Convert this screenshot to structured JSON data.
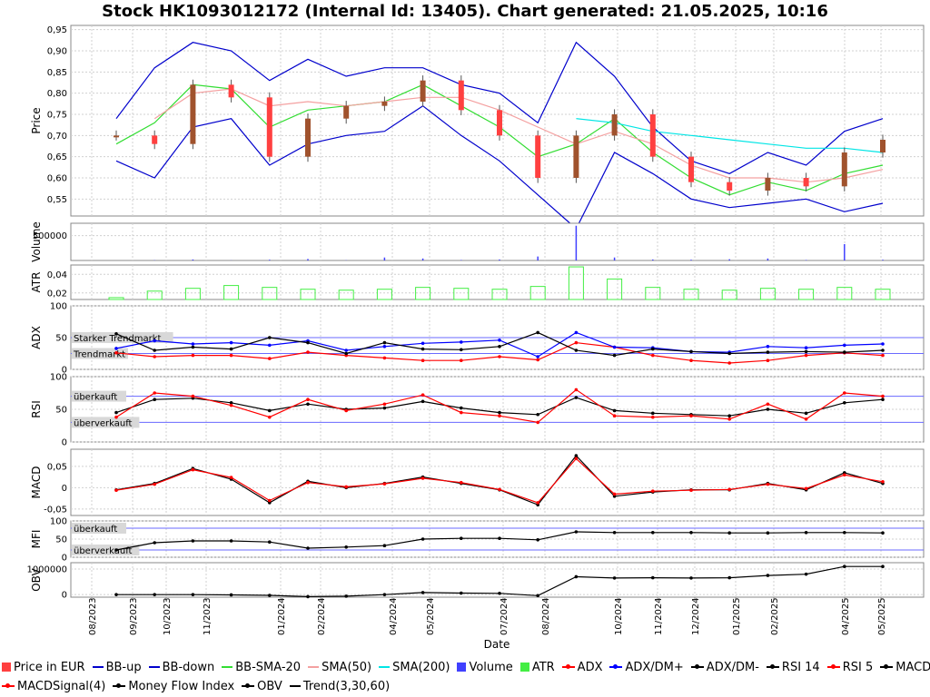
{
  "title": "Stock HK1093012172 (Internal Id: 13405). Chart generated: 21.05.2025, 10:16",
  "x_axis": {
    "label": "Date",
    "ticks": [
      "08/2023",
      "09/2023",
      "10/2023",
      "11/2023",
      "01/2024",
      "02/2024",
      "04/2024",
      "05/2024",
      "07/2024",
      "08/2024",
      "10/2024",
      "11/2024",
      "12/2024",
      "01/2025",
      "02/2025",
      "04/2025",
      "05/2025"
    ]
  },
  "panels": {
    "price": {
      "label": "Price",
      "ticks": [
        "0,55",
        "0,60",
        "0,65",
        "0,70",
        "0,75",
        "0,80",
        "0,85",
        "0,90",
        "0,95"
      ]
    },
    "volume": {
      "label": "Volume",
      "ticks": [
        "500000"
      ]
    },
    "atr": {
      "label": "ATR",
      "ticks": [
        "0,02",
        "0,04"
      ]
    },
    "adx": {
      "label": "ADX",
      "ticks": [
        "0",
        "50",
        "100"
      ],
      "band_strong": "Starker Trendmarkt",
      "band_trend": "Trendmarkt"
    },
    "rsi": {
      "label": "RSI",
      "ticks": [
        "0",
        "50",
        "100"
      ],
      "band_over": "überkauft",
      "band_under": "überverkauft"
    },
    "macd": {
      "label": "MACD",
      "ticks": [
        "-0,05",
        "0",
        "0,05"
      ]
    },
    "mfi": {
      "label": "MFI",
      "ticks": [
        "0",
        "50",
        "100"
      ],
      "band_over": "überkauft",
      "band_under": "überverkauft"
    },
    "obv": {
      "label": "OBV",
      "ticks": [
        "0",
        "1000000"
      ]
    }
  },
  "colors": {
    "candle_up": "#a0522d",
    "candle_down": "#ff4040",
    "bb": "#0000cc",
    "bb_sma": "#33dd33",
    "sma50": "#f4a0a0",
    "sma200": "#00e5e5",
    "volume": "#4040ff",
    "atr": "#44ee44",
    "adx": "#ff0000",
    "dm_plus": "#0000ff",
    "dm_minus": "#000000",
    "rsi14": "#000000",
    "rsi5": "#ff0000",
    "macd": "#000000",
    "macd_signal": "#ff0000",
    "mfi": "#000000",
    "obv": "#000000",
    "band_line": "#6a6aff"
  },
  "legend": {
    "row1": [
      {
        "label": "Price in EUR",
        "kind": "box",
        "color": "#ff4040"
      },
      {
        "label": "BB-up",
        "kind": "line",
        "color": "#0000cc"
      },
      {
        "label": "BB-down",
        "kind": "line",
        "color": "#0000cc"
      },
      {
        "label": "BB-SMA-20",
        "kind": "line",
        "color": "#33dd33"
      },
      {
        "label": "SMA(50)",
        "kind": "line",
        "color": "#f4a0a0"
      },
      {
        "label": "SMA(200)",
        "kind": "line",
        "color": "#00e5e5"
      },
      {
        "label": "Volume",
        "kind": "box",
        "color": "#4040ff"
      },
      {
        "label": "ATR",
        "kind": "box",
        "color": "#44ee44"
      },
      {
        "label": "ADX",
        "kind": "mark",
        "color": "#ff0000"
      },
      {
        "label": "ADX/DM+",
        "kind": "mark",
        "color": "#0000ff"
      },
      {
        "label": "ADX/DM-",
        "kind": "mark",
        "color": "#000000"
      },
      {
        "label": "RSI 14",
        "kind": "mark",
        "color": "#000000"
      },
      {
        "label": "RSI 5",
        "kind": "mark",
        "color": "#ff0000"
      },
      {
        "label": "MACD(5,13)",
        "kind": "mark",
        "color": "#000000"
      }
    ],
    "row2": [
      {
        "label": "MACDSignal(4)",
        "kind": "mark",
        "color": "#ff0000"
      },
      {
        "label": "Money Flow Index",
        "kind": "mark",
        "color": "#000000"
      },
      {
        "label": "OBV",
        "kind": "mark",
        "color": "#000000"
      },
      {
        "label": "Trend(3,30,60)",
        "kind": "line",
        "color": "#000000"
      }
    ]
  },
  "chart_data": {
    "type": "line",
    "title": "Stock HK1093012172 (Internal Id: 13405). Chart generated: 21.05.2025, 10:16",
    "xlabel": "Date",
    "x": [
      "09/2023",
      "10/2023",
      "11/2023",
      "12/2023",
      "01/2024",
      "02/2024",
      "03/2024",
      "04/2024",
      "05/2024",
      "06/2024",
      "07/2024",
      "08/2024",
      "09/2024",
      "10/2024",
      "11/2024",
      "12/2024",
      "01/2025",
      "02/2025",
      "03/2025",
      "04/2025",
      "05/2025"
    ],
    "price": {
      "ylabel": "Price",
      "ylim": [
        0.51,
        0.96
      ],
      "series": [
        {
          "name": "Price in EUR",
          "values": [
            0.7,
            0.68,
            0.82,
            0.79,
            0.65,
            0.74,
            0.77,
            0.78,
            0.83,
            0.76,
            0.7,
            0.6,
            0.7,
            0.75,
            0.65,
            0.59,
            0.57,
            0.6,
            0.58,
            0.66,
            0.69
          ]
        },
        {
          "name": "BB-up",
          "values": [
            0.74,
            0.86,
            0.92,
            0.9,
            0.83,
            0.88,
            0.84,
            0.86,
            0.86,
            0.82,
            0.8,
            0.73,
            0.92,
            0.84,
            0.72,
            0.64,
            0.61,
            0.66,
            0.63,
            0.71,
            0.74
          ]
        },
        {
          "name": "BB-down",
          "values": [
            0.64,
            0.6,
            0.72,
            0.74,
            0.63,
            0.68,
            0.7,
            0.71,
            0.77,
            0.7,
            0.64,
            0.56,
            0.48,
            0.66,
            0.61,
            0.55,
            0.53,
            0.54,
            0.55,
            0.52,
            0.54
          ]
        },
        {
          "name": "BB-SMA-20",
          "values": [
            0.68,
            0.73,
            0.82,
            0.81,
            0.72,
            0.76,
            0.77,
            0.78,
            0.82,
            0.77,
            0.72,
            0.65,
            0.68,
            0.74,
            0.66,
            0.6,
            0.56,
            0.59,
            0.57,
            0.61,
            0.63
          ]
        },
        {
          "name": "SMA(50)",
          "values": [
            null,
            0.74,
            0.8,
            0.81,
            0.77,
            0.78,
            0.77,
            0.78,
            0.79,
            0.79,
            0.76,
            0.72,
            0.68,
            0.71,
            0.68,
            0.63,
            0.6,
            0.6,
            0.59,
            0.6,
            0.62
          ]
        },
        {
          "name": "SMA(200)",
          "values": [
            null,
            null,
            null,
            null,
            null,
            null,
            null,
            null,
            null,
            null,
            null,
            null,
            0.74,
            0.73,
            0.71,
            0.7,
            0.69,
            0.68,
            0.67,
            0.67,
            0.66
          ]
        }
      ]
    },
    "volume": {
      "ylabel": "Volume",
      "values": [
        0,
        5000,
        20000,
        3000,
        15000,
        30000,
        5000,
        60000,
        40000,
        10000,
        20000,
        80000,
        700000,
        60000,
        20000,
        15000,
        25000,
        40000,
        10000,
        330000,
        15000
      ]
    },
    "atr": {
      "ylabel": "ATR",
      "values": [
        0.015,
        0.022,
        0.025,
        0.028,
        0.026,
        0.024,
        0.023,
        0.024,
        0.026,
        0.025,
        0.024,
        0.027,
        0.048,
        0.035,
        0.026,
        0.024,
        0.023,
        0.025,
        0.024,
        0.026,
        0.024
      ]
    },
    "adx": {
      "ylabel": "ADX",
      "ylim": [
        0,
        100
      ],
      "series": [
        {
          "name": "ADX",
          "values": [
            26,
            20,
            22,
            22,
            17,
            27,
            22,
            18,
            14,
            14,
            20,
            15,
            42,
            35,
            22,
            14,
            10,
            14,
            22,
            26,
            22
          ]
        },
        {
          "name": "ADX/DM+",
          "values": [
            33,
            45,
            40,
            42,
            38,
            45,
            30,
            36,
            41,
            43,
            46,
            20,
            58,
            35,
            34,
            28,
            27,
            36,
            34,
            38,
            40
          ]
        },
        {
          "name": "ADX/DM-",
          "values": [
            56,
            30,
            35,
            32,
            50,
            42,
            25,
            42,
            32,
            31,
            36,
            58,
            30,
            22,
            32,
            28,
            25,
            27,
            28,
            27,
            30
          ]
        }
      ]
    },
    "rsi": {
      "ylabel": "RSI",
      "ylim": [
        0,
        100
      ],
      "series": [
        {
          "name": "RSI 14",
          "values": [
            45,
            65,
            67,
            60,
            48,
            58,
            50,
            52,
            62,
            52,
            45,
            42,
            68,
            48,
            44,
            42,
            40,
            50,
            44,
            60,
            65
          ]
        },
        {
          "name": "RSI 5",
          "values": [
            38,
            75,
            70,
            56,
            38,
            65,
            48,
            58,
            72,
            45,
            40,
            30,
            80,
            40,
            38,
            40,
            35,
            58,
            35,
            75,
            70
          ]
        }
      ]
    },
    "macd": {
      "ylabel": "MACD",
      "ylim": [
        -0.065,
        0.09
      ],
      "series": [
        {
          "name": "MACD(5,13)",
          "values": [
            -0.005,
            0.01,
            0.045,
            0.02,
            -0.035,
            0.015,
            0.0,
            0.01,
            0.025,
            0.01,
            -0.005,
            -0.04,
            0.075,
            -0.02,
            -0.01,
            -0.005,
            -0.005,
            0.01,
            -0.005,
            0.035,
            0.01
          ]
        },
        {
          "name": "MACDSignal(4)",
          "values": [
            -0.006,
            0.008,
            0.042,
            0.024,
            -0.03,
            0.012,
            0.002,
            0.009,
            0.022,
            0.012,
            -0.004,
            -0.035,
            0.068,
            -0.015,
            -0.008,
            -0.006,
            -0.004,
            0.008,
            -0.002,
            0.03,
            0.014
          ]
        }
      ]
    },
    "mfi": {
      "ylabel": "MFI",
      "ylim": [
        0,
        100
      ],
      "values": [
        20,
        40,
        45,
        45,
        42,
        25,
        28,
        32,
        50,
        52,
        52,
        48,
        70,
        68,
        68,
        68,
        67,
        67,
        68,
        68,
        67
      ]
    },
    "obv": {
      "ylabel": "OBV",
      "ylim": [
        -100000,
        1250000
      ],
      "values": [
        0,
        0,
        0,
        -10000,
        -30000,
        -80000,
        -60000,
        0,
        80000,
        60000,
        50000,
        -40000,
        700000,
        650000,
        660000,
        650000,
        660000,
        750000,
        800000,
        1100000,
        1100000
      ]
    }
  }
}
